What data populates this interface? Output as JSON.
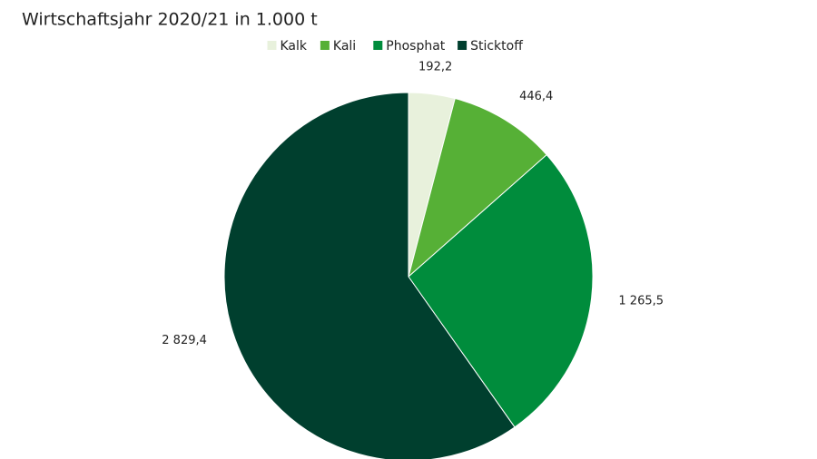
{
  "chart_data": {
    "type": "pie",
    "subtitle": "Wirtschaftsjahr 2020/21 in 1.000 t",
    "categories": [
      "Kalk",
      "Kali",
      "Phosphat",
      "Sticktoff"
    ],
    "values": [
      192.2,
      446.4,
      1265.5,
      2829.4
    ],
    "value_labels": [
      "192,2",
      "446,4",
      "1 265,5",
      "2 829,4"
    ],
    "colors": [
      "#e8f1dc",
      "#56b036",
      "#008c3c",
      "#003f2e"
    ],
    "legend": "top"
  }
}
